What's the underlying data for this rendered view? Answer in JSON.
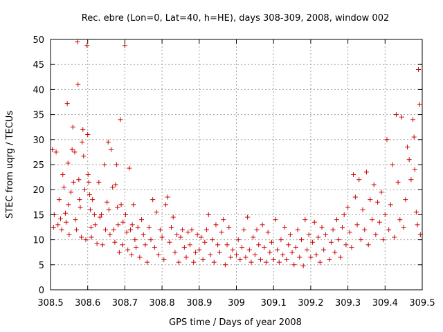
{
  "chart_data": {
    "type": "scatter",
    "title": "Rec. ebre (Lon=0, Lat=40, h=HE), days 308-309, 2008, window 002",
    "xlabel": "GPS time / Days of year 2008",
    "ylabel": "STEC from uqrg / TECUs",
    "xlim": [
      308.5,
      309.5
    ],
    "ylim": [
      0,
      50
    ],
    "xticks": [
      "308.5",
      "308.6",
      "308.7",
      "308.8",
      "308.9",
      "309",
      "309.1",
      "309.2",
      "309.3",
      "309.4",
      "309.5"
    ],
    "yticks": [
      "0",
      "5",
      "10",
      "15",
      "20",
      "25",
      "30",
      "35",
      "40",
      "45",
      "50"
    ],
    "grid": true,
    "marker": "plus",
    "color": "#cc0000",
    "series": [
      {
        "points": [
          [
            308.505,
            28.0
          ],
          [
            308.508,
            12.5
          ],
          [
            308.51,
            15.0
          ],
          [
            308.515,
            27.5
          ],
          [
            308.52,
            13.0
          ],
          [
            308.523,
            18.0
          ],
          [
            308.527,
            14.2
          ],
          [
            308.53,
            12.0
          ],
          [
            308.533,
            23.0
          ],
          [
            308.536,
            20.5
          ],
          [
            308.54,
            15.3
          ],
          [
            308.542,
            13.5
          ],
          [
            308.545,
            37.2
          ],
          [
            308.547,
            25.3
          ],
          [
            308.548,
            17.0
          ],
          [
            308.55,
            11.0
          ],
          [
            308.555,
            19.5
          ],
          [
            308.558,
            28.0
          ],
          [
            308.56,
            32.5
          ],
          [
            308.562,
            21.5
          ],
          [
            308.565,
            27.5
          ],
          [
            308.567,
            14.0
          ],
          [
            308.57,
            12.0
          ],
          [
            308.572,
            49.5
          ],
          [
            308.574,
            41.0
          ],
          [
            308.576,
            22.0
          ],
          [
            308.578,
            18.0
          ],
          [
            308.58,
            16.5
          ],
          [
            308.583,
            10.5
          ],
          [
            308.585,
            29.5
          ],
          [
            308.587,
            32.0
          ],
          [
            308.589,
            26.7
          ],
          [
            308.592,
            20.0
          ],
          [
            308.595,
            10.0
          ],
          [
            308.598,
            48.8
          ],
          [
            308.6,
            31.0
          ],
          [
            308.601,
            23.0
          ],
          [
            308.603,
            21.5
          ],
          [
            308.605,
            19.0
          ],
          [
            308.607,
            16.0
          ],
          [
            308.609,
            12.5
          ],
          [
            308.61,
            10.5
          ],
          [
            308.613,
            18.0
          ],
          [
            308.618,
            15.0
          ],
          [
            308.62,
            13.0
          ],
          [
            308.625,
            9.2
          ],
          [
            308.63,
            21.5
          ],
          [
            308.633,
            14.5
          ],
          [
            308.637,
            15.0
          ],
          [
            308.64,
            9.0
          ],
          [
            308.645,
            25.0
          ],
          [
            308.648,
            12.0
          ],
          [
            308.652,
            17.5
          ],
          [
            308.655,
            29.5
          ],
          [
            308.657,
            16.0
          ],
          [
            308.66,
            11.0
          ],
          [
            308.663,
            28.0
          ],
          [
            308.667,
            20.5
          ],
          [
            308.67,
            12.0
          ],
          [
            308.673,
            9.5
          ],
          [
            308.675,
            21.0
          ],
          [
            308.678,
            25.0
          ],
          [
            308.68,
            16.5
          ],
          [
            308.682,
            13.0
          ],
          [
            308.685,
            7.5
          ],
          [
            308.688,
            34.0
          ],
          [
            308.69,
            17.0
          ],
          [
            308.693,
            9.0
          ],
          [
            308.695,
            13.5
          ],
          [
            308.7,
            48.8
          ],
          [
            308.702,
            15.0
          ],
          [
            308.705,
            11.5
          ],
          [
            308.708,
            8.0
          ],
          [
            308.712,
            24.3
          ],
          [
            308.715,
            12.0
          ],
          [
            308.718,
            7.0
          ],
          [
            308.72,
            13.0
          ],
          [
            308.723,
            17.0
          ],
          [
            308.727,
            10.0
          ],
          [
            308.73,
            8.5
          ],
          [
            308.735,
            12.5
          ],
          [
            308.74,
            6.5
          ],
          [
            308.745,
            14.0
          ],
          [
            308.75,
            11.0
          ],
          [
            308.755,
            9.0
          ],
          [
            308.76,
            5.5
          ],
          [
            308.765,
            12.5
          ],
          [
            308.77,
            10.0
          ],
          [
            308.775,
            18.0
          ],
          [
            308.78,
            8.5
          ],
          [
            308.785,
            15.5
          ],
          [
            308.79,
            7.0
          ],
          [
            308.795,
            12.0
          ],
          [
            308.8,
            10.5
          ],
          [
            308.805,
            6.0
          ],
          [
            308.81,
            17.0
          ],
          [
            308.815,
            18.5
          ],
          [
            308.82,
            9.5
          ],
          [
            308.825,
            12.5
          ],
          [
            308.83,
            14.5
          ],
          [
            308.835,
            7.5
          ],
          [
            308.84,
            11.0
          ],
          [
            308.845,
            5.5
          ],
          [
            308.85,
            10.5
          ],
          [
            308.855,
            12.0
          ],
          [
            308.86,
            8.5
          ],
          [
            308.865,
            6.5
          ],
          [
            308.87,
            11.5
          ],
          [
            308.875,
            9.0
          ],
          [
            308.88,
            12.0
          ],
          [
            308.885,
            5.5
          ],
          [
            308.89,
            7.5
          ],
          [
            308.895,
            11.0
          ],
          [
            308.9,
            8.0
          ],
          [
            308.905,
            10.5
          ],
          [
            308.91,
            6.0
          ],
          [
            308.915,
            9.5
          ],
          [
            308.92,
            12.0
          ],
          [
            308.925,
            15.0
          ],
          [
            308.93,
            7.0
          ],
          [
            308.935,
            10.0
          ],
          [
            308.94,
            5.5
          ],
          [
            308.945,
            13.0
          ],
          [
            308.95,
            9.0
          ],
          [
            308.955,
            7.5
          ],
          [
            308.96,
            11.5
          ],
          [
            308.965,
            14.0
          ],
          [
            308.97,
            5.0
          ],
          [
            308.975,
            9.0
          ],
          [
            308.98,
            12.5
          ],
          [
            308.985,
            6.5
          ],
          [
            308.99,
            8.0
          ],
          [
            309.0,
            7.0
          ],
          [
            309.005,
            10.0
          ],
          [
            309.01,
            6.0
          ],
          [
            309.015,
            8.5
          ],
          [
            309.02,
            12.0
          ],
          [
            309.025,
            6.5
          ],
          [
            309.03,
            14.5
          ],
          [
            309.035,
            8.0
          ],
          [
            309.04,
            5.5
          ],
          [
            309.045,
            10.5
          ],
          [
            309.05,
            7.0
          ],
          [
            309.055,
            12.0
          ],
          [
            309.06,
            9.0
          ],
          [
            309.065,
            6.0
          ],
          [
            309.07,
            13.0
          ],
          [
            309.075,
            8.5
          ],
          [
            309.08,
            5.5
          ],
          [
            309.085,
            11.5
          ],
          [
            309.09,
            7.5
          ],
          [
            309.095,
            9.5
          ],
          [
            309.1,
            6.0
          ],
          [
            309.105,
            14.0
          ],
          [
            309.11,
            8.0
          ],
          [
            309.115,
            5.5
          ],
          [
            309.12,
            10.0
          ],
          [
            309.125,
            7.0
          ],
          [
            309.13,
            12.5
          ],
          [
            309.135,
            6.0
          ],
          [
            309.14,
            9.0
          ],
          [
            309.145,
            11.0
          ],
          [
            309.15,
            7.5
          ],
          [
            309.155,
            5.0
          ],
          [
            309.16,
            8.5
          ],
          [
            309.165,
            12.0
          ],
          [
            309.17,
            6.5
          ],
          [
            309.175,
            10.0
          ],
          [
            309.18,
            4.8
          ],
          [
            309.185,
            14.0
          ],
          [
            309.19,
            8.0
          ],
          [
            309.195,
            11.0
          ],
          [
            309.2,
            6.5
          ],
          [
            309.205,
            9.5
          ],
          [
            309.21,
            13.5
          ],
          [
            309.215,
            7.0
          ],
          [
            309.22,
            10.5
          ],
          [
            309.225,
            5.5
          ],
          [
            309.23,
            12.5
          ],
          [
            309.235,
            8.0
          ],
          [
            309.24,
            11.0
          ],
          [
            309.25,
            6.0
          ],
          [
            309.255,
            9.5
          ],
          [
            309.26,
            12.0
          ],
          [
            309.265,
            7.5
          ],
          [
            309.27,
            14.0
          ],
          [
            309.275,
            10.0
          ],
          [
            309.28,
            6.5
          ],
          [
            309.285,
            12.5
          ],
          [
            309.29,
            15.0
          ],
          [
            309.295,
            9.0
          ],
          [
            309.3,
            16.5
          ],
          [
            309.305,
            11.5
          ],
          [
            309.31,
            8.5
          ],
          [
            309.315,
            23.0
          ],
          [
            309.32,
            18.5
          ],
          [
            309.325,
            13.0
          ],
          [
            309.33,
            22.0
          ],
          [
            309.335,
            10.0
          ],
          [
            309.34,
            16.0
          ],
          [
            309.345,
            12.0
          ],
          [
            309.35,
            23.5
          ],
          [
            309.355,
            9.0
          ],
          [
            309.36,
            18.0
          ],
          [
            309.365,
            14.0
          ],
          [
            309.37,
            21.0
          ],
          [
            309.375,
            11.0
          ],
          [
            309.38,
            17.5
          ],
          [
            309.385,
            13.5
          ],
          [
            309.39,
            19.5
          ],
          [
            309.395,
            10.0
          ],
          [
            309.4,
            15.0
          ],
          [
            309.405,
            30.0
          ],
          [
            309.41,
            12.0
          ],
          [
            309.415,
            17.0
          ],
          [
            309.42,
            25.0
          ],
          [
            309.425,
            10.5
          ],
          [
            309.43,
            35.0
          ],
          [
            309.435,
            21.5
          ],
          [
            309.44,
            14.0
          ],
          [
            309.445,
            34.5
          ],
          [
            309.45,
            12.5
          ],
          [
            309.455,
            18.0
          ],
          [
            309.46,
            28.5
          ],
          [
            309.465,
            26.0
          ],
          [
            309.47,
            22.0
          ],
          [
            309.475,
            34.0
          ],
          [
            309.478,
            30.5
          ],
          [
            309.48,
            24.0
          ],
          [
            309.484,
            15.5
          ],
          [
            309.487,
            13.0
          ],
          [
            309.49,
            44.0
          ],
          [
            309.493,
            37.0
          ],
          [
            309.495,
            11.0
          ]
        ]
      }
    ]
  }
}
